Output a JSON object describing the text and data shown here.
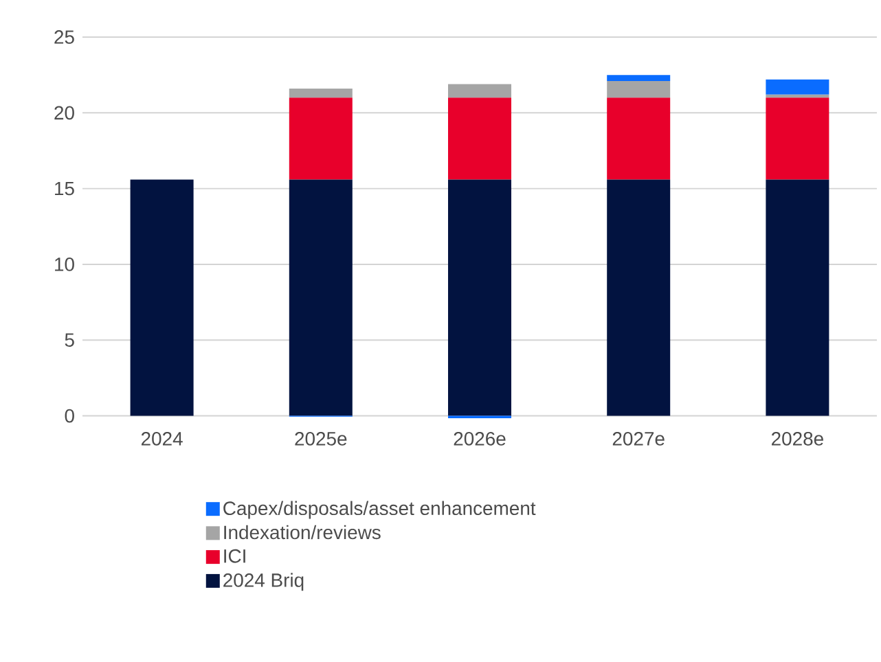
{
  "chart_data": {
    "type": "bar",
    "stacked": true,
    "categories": [
      "2024",
      "2025e",
      "2026e",
      "2027e",
      "2028e"
    ],
    "series": [
      {
        "name": "2024 Briq",
        "color": "#021340",
        "values": [
          15.6,
          15.6,
          15.6,
          15.6,
          15.6
        ]
      },
      {
        "name": "ICI",
        "color": "#e8002b",
        "values": [
          null,
          5.4,
          5.4,
          5.4,
          5.4
        ]
      },
      {
        "name": "Indexation/reviews",
        "color": "#a5a5a5",
        "values": [
          null,
          0.6,
          0.9,
          1.1,
          0.2
        ]
      },
      {
        "name": "Capex/disposals/asset enhancement",
        "color": "#0a6cff",
        "values": [
          null,
          -0.05,
          -0.15,
          0.4,
          1.0
        ]
      }
    ],
    "ylim": [
      -0.2,
      25
    ],
    "yticks": [
      0,
      5,
      10,
      15,
      20,
      25
    ],
    "grid": "y",
    "legend": "bottom"
  }
}
